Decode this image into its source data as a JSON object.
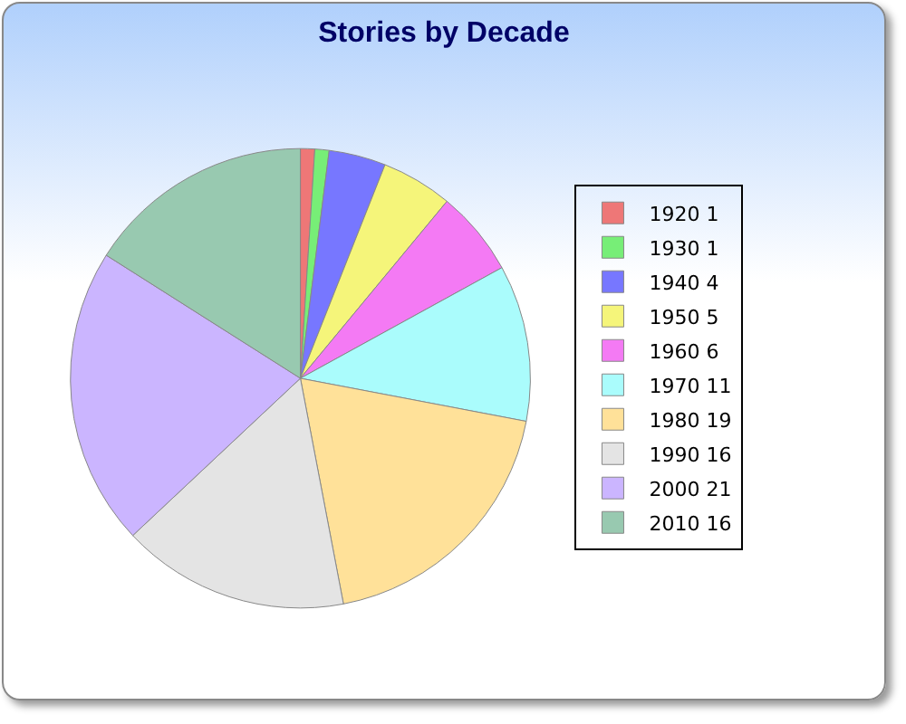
{
  "chart_data": {
    "type": "pie",
    "title": "Stories by Decade",
    "categories": [
      "1920 1",
      "1930 1",
      "1940 4",
      "1950 5",
      "1960 6",
      "1970 11",
      "1980 19",
      "1990 16",
      "2000 21",
      "2010 16"
    ],
    "values": [
      1,
      1,
      4,
      5,
      6,
      11,
      19,
      16,
      21,
      16
    ],
    "colors": [
      "#ee7777",
      "#77ee77",
      "#7777ff",
      "#f5f57a",
      "#f47af4",
      "#aafcfc",
      "#ffe199",
      "#e4e4e4",
      "#cbb5ff",
      "#98c9b0"
    ],
    "legend": "right"
  }
}
